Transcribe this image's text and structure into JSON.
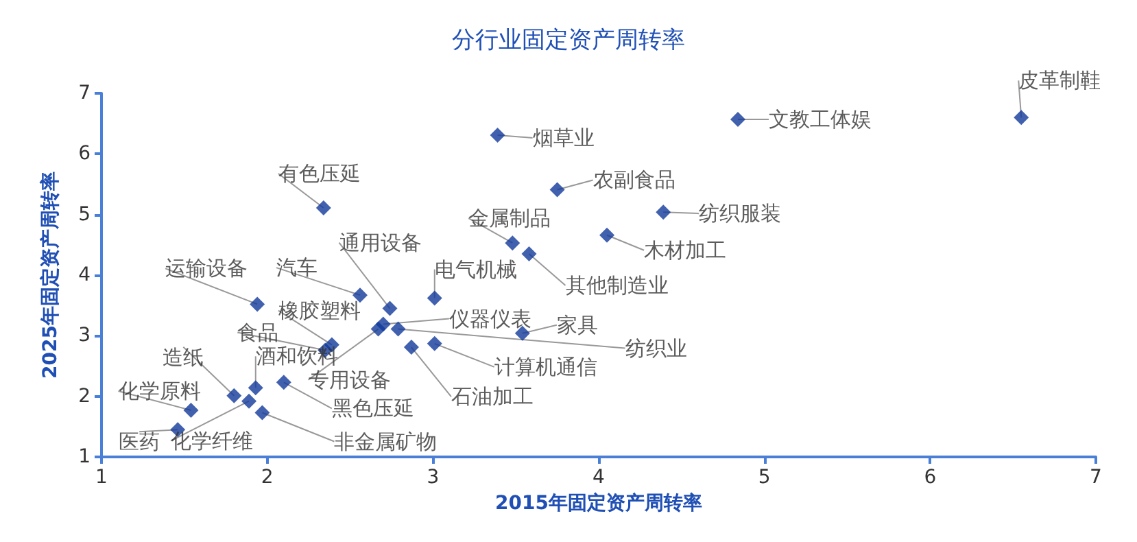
{
  "chart_data": {
    "type": "scatter",
    "title": "分行业固定资产周转率",
    "xlabel": "2015年固定资产周转率",
    "ylabel": "2025年固定资产周转率",
    "x": [
      6.55,
      4.84,
      3.39,
      3.75,
      4.39,
      4.05,
      3.48,
      3.58,
      2.34,
      3.01,
      2.56,
      2.74,
      2.7,
      2.79,
      3.54,
      3.01,
      2.67,
      2.87,
      2.39,
      2.35,
      1.94,
      2.1,
      1.8,
      1.93,
      1.54,
      1.46,
      1.89,
      1.97
    ],
    "series": [
      {
        "color": "#123a9a",
        "values": [
          6.6,
          6.57,
          6.31,
          5.41,
          5.04,
          4.66,
          4.53,
          4.35,
          5.11,
          3.62,
          3.67,
          3.45,
          3.19,
          3.11,
          3.04,
          2.87,
          3.11,
          2.81,
          2.85,
          2.76,
          3.52,
          2.23,
          2.01,
          2.14,
          1.77,
          1.45,
          1.92,
          1.73
        ]
      }
    ],
    "annotations": [
      {
        "text": "皮革制鞋",
        "x": 6.55,
        "y": 6.6
      },
      {
        "text": "文教工体娱",
        "x": 4.84,
        "y": 6.57
      },
      {
        "text": "烟草业",
        "x": 3.39,
        "y": 6.31
      },
      {
        "text": "农副食品",
        "x": 3.75,
        "y": 5.41
      },
      {
        "text": "纺织服装",
        "x": 4.39,
        "y": 5.04
      },
      {
        "text": "木材加工",
        "x": 4.05,
        "y": 4.66
      },
      {
        "text": "金属制品",
        "x": 3.48,
        "y": 4.53
      },
      {
        "text": "其他制造业",
        "x": 3.58,
        "y": 4.35
      },
      {
        "text": "有色压延",
        "x": 2.34,
        "y": 5.11
      },
      {
        "text": "电气机械",
        "x": 3.01,
        "y": 3.62
      },
      {
        "text": "汽车",
        "x": 2.56,
        "y": 3.67
      },
      {
        "text": "通用设备",
        "x": 2.74,
        "y": 3.45
      },
      {
        "text": "仪器仪表",
        "x": 2.7,
        "y": 3.19
      },
      {
        "text": "纺织业",
        "x": 2.79,
        "y": 3.11
      },
      {
        "text": "家具",
        "x": 3.54,
        "y": 3.04
      },
      {
        "text": "计算机通信",
        "x": 3.01,
        "y": 2.87
      },
      {
        "text": "专用设备",
        "x": 2.67,
        "y": 3.11
      },
      {
        "text": "石油加工",
        "x": 2.87,
        "y": 2.81
      },
      {
        "text": "橡胶塑料",
        "x": 2.39,
        "y": 2.85
      },
      {
        "text": "食品",
        "x": 2.35,
        "y": 2.76
      },
      {
        "text": "运输设备",
        "x": 1.94,
        "y": 3.52
      },
      {
        "text": "黑色压延",
        "x": 2.1,
        "y": 2.23
      },
      {
        "text": "造纸",
        "x": 1.8,
        "y": 2.01
      },
      {
        "text": "酒和饮料",
        "x": 1.93,
        "y": 2.14
      },
      {
        "text": "化学原料",
        "x": 1.54,
        "y": 1.77
      },
      {
        "text": "医药",
        "x": 1.46,
        "y": 1.45
      },
      {
        "text": "化学纤维",
        "x": 1.89,
        "y": 1.92
      },
      {
        "text": "非金属矿物",
        "x": 1.97,
        "y": 1.73
      }
    ],
    "xlim": [
      1,
      7
    ],
    "xticks": [
      1,
      2,
      3,
      4,
      5,
      6,
      7
    ],
    "ylim": [
      1,
      7
    ],
    "yticks": [
      1,
      2,
      3,
      4,
      5,
      6,
      7
    ],
    "grid": false,
    "marker": "diamond"
  }
}
